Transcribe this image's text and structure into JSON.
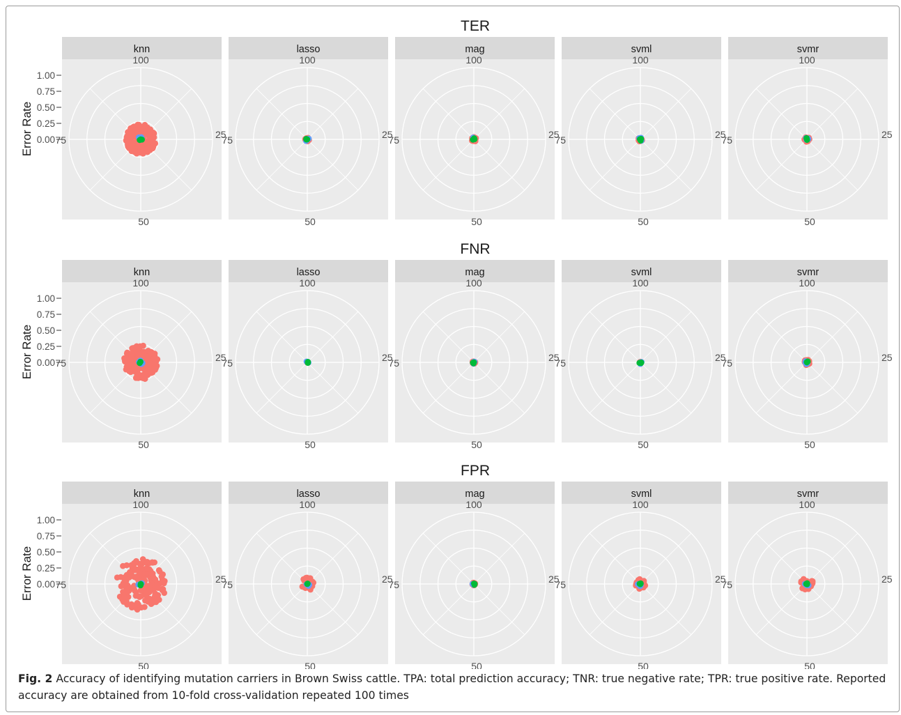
{
  "figure": {
    "row_titles": [
      "TER",
      "FNR",
      "FPR"
    ],
    "panel_labels": [
      "knn",
      "lasso",
      "mag",
      "svml",
      "svmr"
    ],
    "y_axis_label": "Error Rate",
    "y_ticks": [
      "1.00",
      "0.75",
      "0.50",
      "0.25",
      "0.00"
    ],
    "angle_labels": {
      "top": "100",
      "right": "25",
      "bottom": "50",
      "left": "75"
    }
  },
  "caption": {
    "label": "Fig. 2",
    "text": " Accuracy of identifying mutation carriers in Brown Swiss cattle. TPA: total prediction accuracy; TNR: true negative rate; TPR: true positive rate. Reported accuracy are obtained from 10-fold cross-validation repeated 100 times"
  },
  "chart_data": {
    "type": "scatter",
    "coordinate_system": "polar",
    "facet_rows": [
      "TER",
      "FNR",
      "FPR"
    ],
    "facet_columns": [
      "knn",
      "lasso",
      "mag",
      "svml",
      "svmr"
    ],
    "ylabel": "Error Rate",
    "ylim": [
      0,
      1
    ],
    "theta_ticks": [
      0,
      25,
      50,
      75,
      100
    ],
    "grid": true,
    "point_colors": {
      "red": "#F8766D",
      "green": "#00BA38",
      "blue": "#619CFF"
    },
    "spread": {
      "TER": {
        "knn": 0.21,
        "lasso": 0.03,
        "mag": 0.035,
        "svml": 0.03,
        "svmr": 0.035
      },
      "FNR": {
        "knn": 0.24,
        "lasso": 0.0,
        "mag": 0.02,
        "svml": 0.01,
        "svmr": 0.04
      },
      "FPR": {
        "knn": 0.36,
        "lasso": 0.09,
        "mag": 0.02,
        "svml": 0.07,
        "svmr": 0.09
      }
    }
  }
}
